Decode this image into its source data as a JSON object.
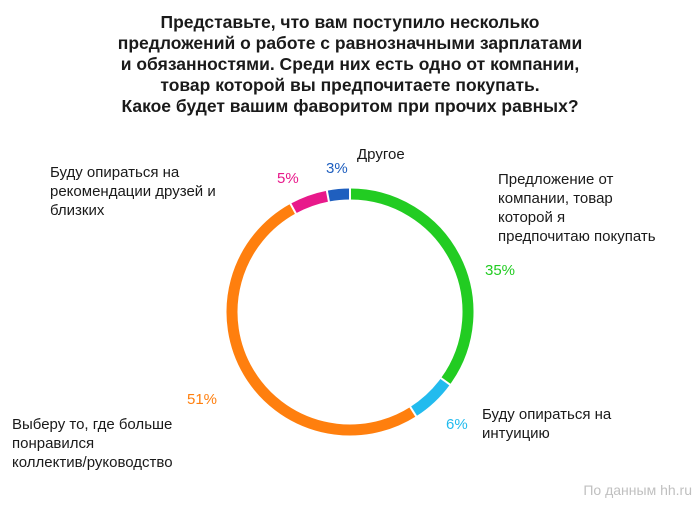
{
  "chart_data": {
    "type": "pie",
    "title": "Представьте, что вам поступило несколько предложений о работе с равнозначными зарплатами и обязанностями. Среди них есть одно от компании, товар которой вы предпочитаете покупать. Какое будет вашим фаворитом при прочих равных?",
    "title_lines": [
      "Представьте, что вам поступило несколько",
      "предложений о работе с равнозначными зарплатами",
      "и обязанностями. Среди них есть одно от компании,",
      "товар которой вы предпочитаете покупать.",
      "Какое будет вашим фаворитом при прочих равных?"
    ],
    "slices": [
      {
        "label": "Предложение от компании, товар которой я предпочитаю покупать",
        "label_lines": [
          "Предложение от",
          "компании, товар",
          "которой я",
          "предпочитаю покупать"
        ],
        "value": 35,
        "value_label": "35%",
        "color": "#22cc22"
      },
      {
        "label": "Буду опираться на интуицию",
        "label_lines": [
          "Буду опираться на",
          "интуицию"
        ],
        "value": 6,
        "value_label": "6%",
        "color": "#22bbee"
      },
      {
        "label": "Выберу то, где больше понравился коллектив/руководство",
        "label_lines": [
          "Выберу то, где больше",
          "понравился",
          "коллектив/руководство"
        ],
        "value": 51,
        "value_label": "51%",
        "color": "#ff7f0e"
      },
      {
        "label": "Буду опираться на рекомендации друзей и близких",
        "label_lines": [
          "Буду опираться на",
          "рекомендации друзей и",
          "близких"
        ],
        "value": 5,
        "value_label": "5%",
        "color": "#e8198b"
      },
      {
        "label": "Другое",
        "label_lines": [
          "Другое"
        ],
        "value": 3,
        "value_label": "3%",
        "color": "#1f5fbf"
      }
    ],
    "style": "donut",
    "start_angle_deg": 0,
    "direction": "clockwise"
  },
  "source": "По данным hh.ru"
}
